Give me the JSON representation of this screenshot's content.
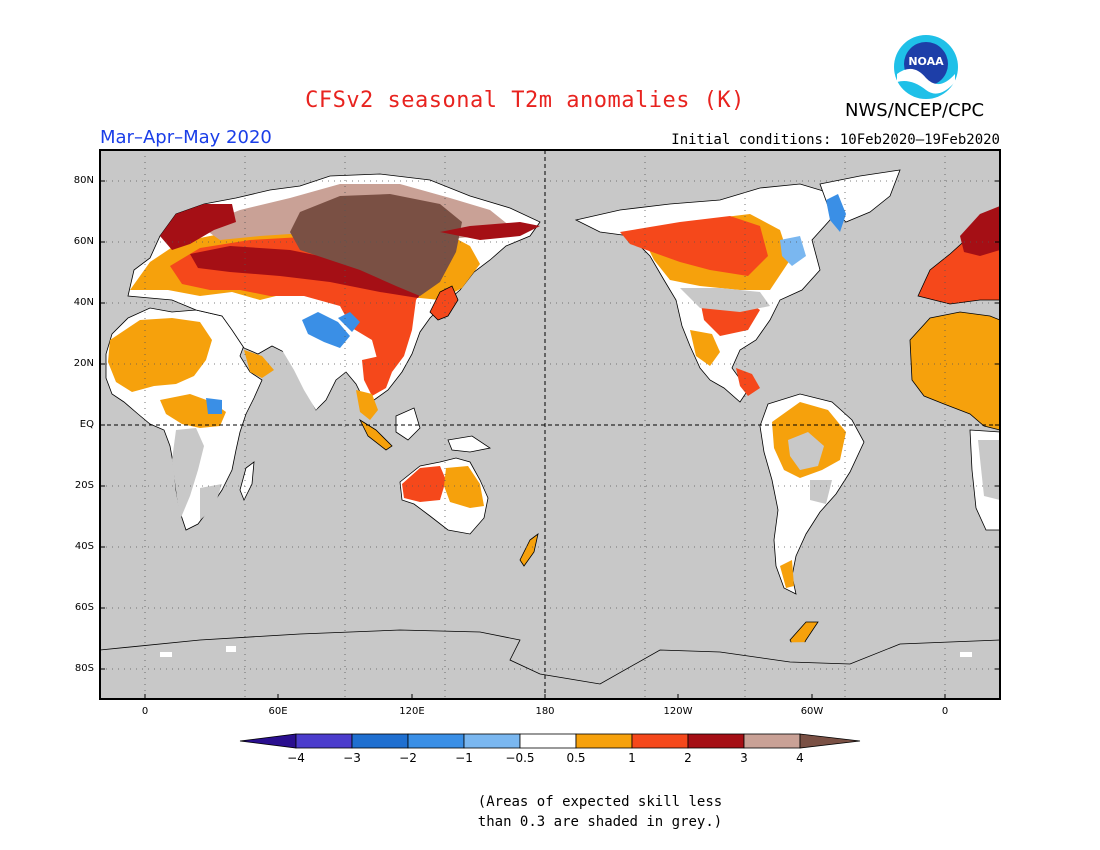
{
  "header": {
    "title": "CFSv2 seasonal T2m anomalies (K)",
    "org": "NWS/NCEP/CPC",
    "season": "Mar–Apr–May 2020",
    "initial_conditions": "Initial conditions: 10Feb2020–19Feb2020",
    "logo_text": "NOAA"
  },
  "axes": {
    "lat_labels": [
      "80N",
      "60N",
      "40N",
      "20N",
      "EQ",
      "20S",
      "40S",
      "60S",
      "80S"
    ],
    "lon_labels": [
      "0",
      "60E",
      "120E",
      "180",
      "120W",
      "60W",
      "0"
    ]
  },
  "colorbar": {
    "labels": [
      "−4",
      "−3",
      "−2",
      "−1",
      "−0.5",
      "0.5",
      "1",
      "2",
      "3",
      "4"
    ],
    "colors": [
      "#2a0f8f",
      "#4b3ccc",
      "#1f6fd0",
      "#3a8fe6",
      "#7ab7f0",
      "#ffffff",
      "#f6a10c",
      "#f5481b",
      "#a50f15",
      "#c9a196",
      "#7a5044"
    ]
  },
  "colors": {
    "no_skill": "#c8c8c8",
    "ocean": "#c8c8c8",
    "title": "#e8231f",
    "season": "#1a3ee8"
  },
  "note": {
    "line1": "(Areas of expected skill less",
    "line2": "than 0.3 are shaded in grey.)"
  }
}
